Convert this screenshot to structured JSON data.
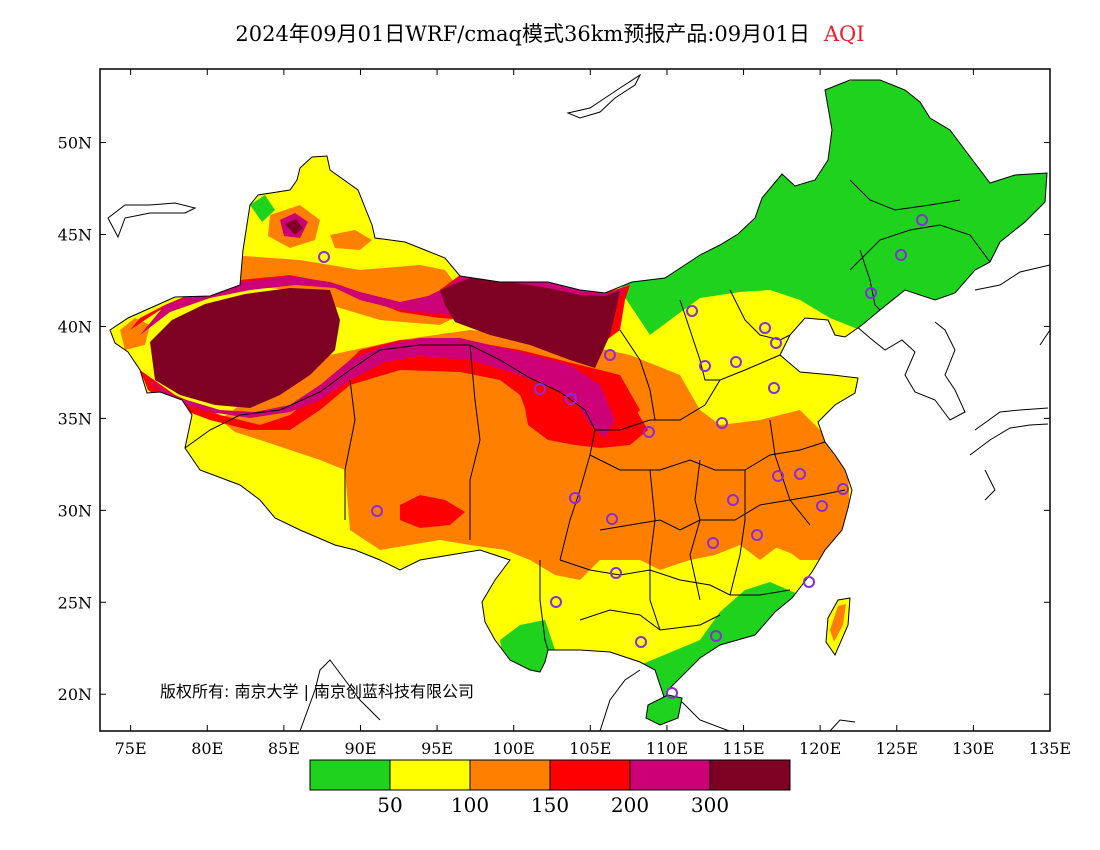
{
  "title": {
    "main": "2024年09月01日WRF/cmaq模式36km预报产品:09月01日",
    "variable": "AQI"
  },
  "map": {
    "lon_range": [
      73,
      135
    ],
    "lat_range": [
      18,
      54
    ],
    "x_ticks": [
      "75E",
      "80E",
      "85E",
      "90E",
      "95E",
      "100E",
      "105E",
      "110E",
      "115E",
      "120E",
      "125E",
      "130E",
      "135E"
    ],
    "y_ticks": [
      "20N",
      "25N",
      "30N",
      "35N",
      "40N",
      "45N",
      "50N"
    ],
    "copyright": "版权所有: 南京大学 | 南京创蓝科技有限公司"
  },
  "legend": {
    "colors": [
      "#1ed21e",
      "#ffff00",
      "#ff8000",
      "#ff0000",
      "#cc0077",
      "#7e0023"
    ],
    "labels": [
      "50",
      "100",
      "150",
      "200",
      "300"
    ]
  }
}
